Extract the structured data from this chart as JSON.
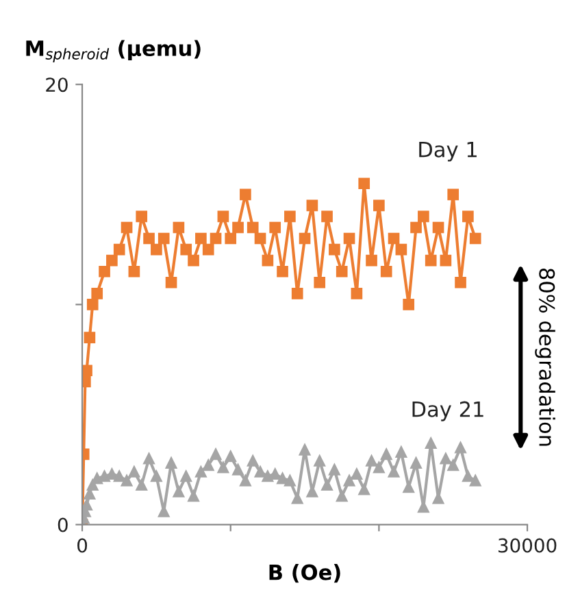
{
  "chart_data": {
    "type": "line",
    "ylabel": "M$_{spheroid}$ (μemu)",
    "xlabel": "B (Oe)",
    "xlim": [
      0,
      30000
    ],
    "xticks": [
      0,
      {
        "value": 10000,
        "label": null
      },
      {
        "value": 20000,
        "label": null
      },
      30000
    ],
    "ylim": [
      0,
      20
    ],
    "yticks": [
      0,
      {
        "value": 10,
        "label": null
      },
      20
    ],
    "grid": false,
    "legend": false,
    "x": [
      0,
      100,
      200,
      300,
      500,
      700,
      1000,
      1500,
      2000,
      2500,
      3000,
      3500,
      4000,
      4500,
      5000,
      5500,
      6000,
      6500,
      7000,
      7500,
      8000,
      8500,
      9000,
      9500,
      10000,
      10500,
      11000,
      11500,
      12000,
      12500,
      13000,
      13500,
      14000,
      14500,
      15000,
      15500,
      16000,
      16500,
      17000,
      17500,
      18000,
      18500,
      19000,
      19500,
      20000,
      20500,
      21000,
      21500,
      22000,
      22500,
      23000,
      23500,
      24000,
      24500,
      25000,
      25500,
      26000,
      26500
    ],
    "series": [
      {
        "name": "Day 1",
        "color": "#ed7d31",
        "marker": "square",
        "values": [
          0,
          3.2,
          6.5,
          7.0,
          8.5,
          10,
          10.5,
          11.5,
          12,
          12.5,
          13.5,
          11.5,
          14,
          13,
          12.5,
          13,
          11,
          13.5,
          12.5,
          12,
          13,
          12.5,
          13,
          14,
          13,
          13.5,
          15,
          13.5,
          13,
          12,
          13.5,
          11.5,
          14,
          10.5,
          13,
          14.5,
          11,
          14,
          12.5,
          11.5,
          13,
          10.5,
          15.5,
          12,
          14.5,
          11.5,
          13,
          12.5,
          10,
          13.5,
          14,
          12,
          13.5,
          12,
          15,
          11,
          14,
          13
        ]
      },
      {
        "name": "Day 21",
        "color": "#a5a5a5",
        "marker": "triangle",
        "values": [
          0,
          0.3,
          0.6,
          0.9,
          1.4,
          1.8,
          2.1,
          2.2,
          2.3,
          2.2,
          2.0,
          2.4,
          1.8,
          3.0,
          2.2,
          0.6,
          2.8,
          1.5,
          2.2,
          1.3,
          2.4,
          2.7,
          3.2,
          2.6,
          3.1,
          2.5,
          2.0,
          2.9,
          2.4,
          2.2,
          2.3,
          2.1,
          2.0,
          1.2,
          3.4,
          1.5,
          2.9,
          1.8,
          2.5,
          1.3,
          2.0,
          2.3,
          1.6,
          2.9,
          2.6,
          3.2,
          2.4,
          3.3,
          1.7,
          2.8,
          0.8,
          3.7,
          1.2,
          3.0,
          2.7,
          3.5,
          2.2,
          2.0
        ]
      }
    ],
    "annotations": [
      "80% degradation"
    ]
  }
}
